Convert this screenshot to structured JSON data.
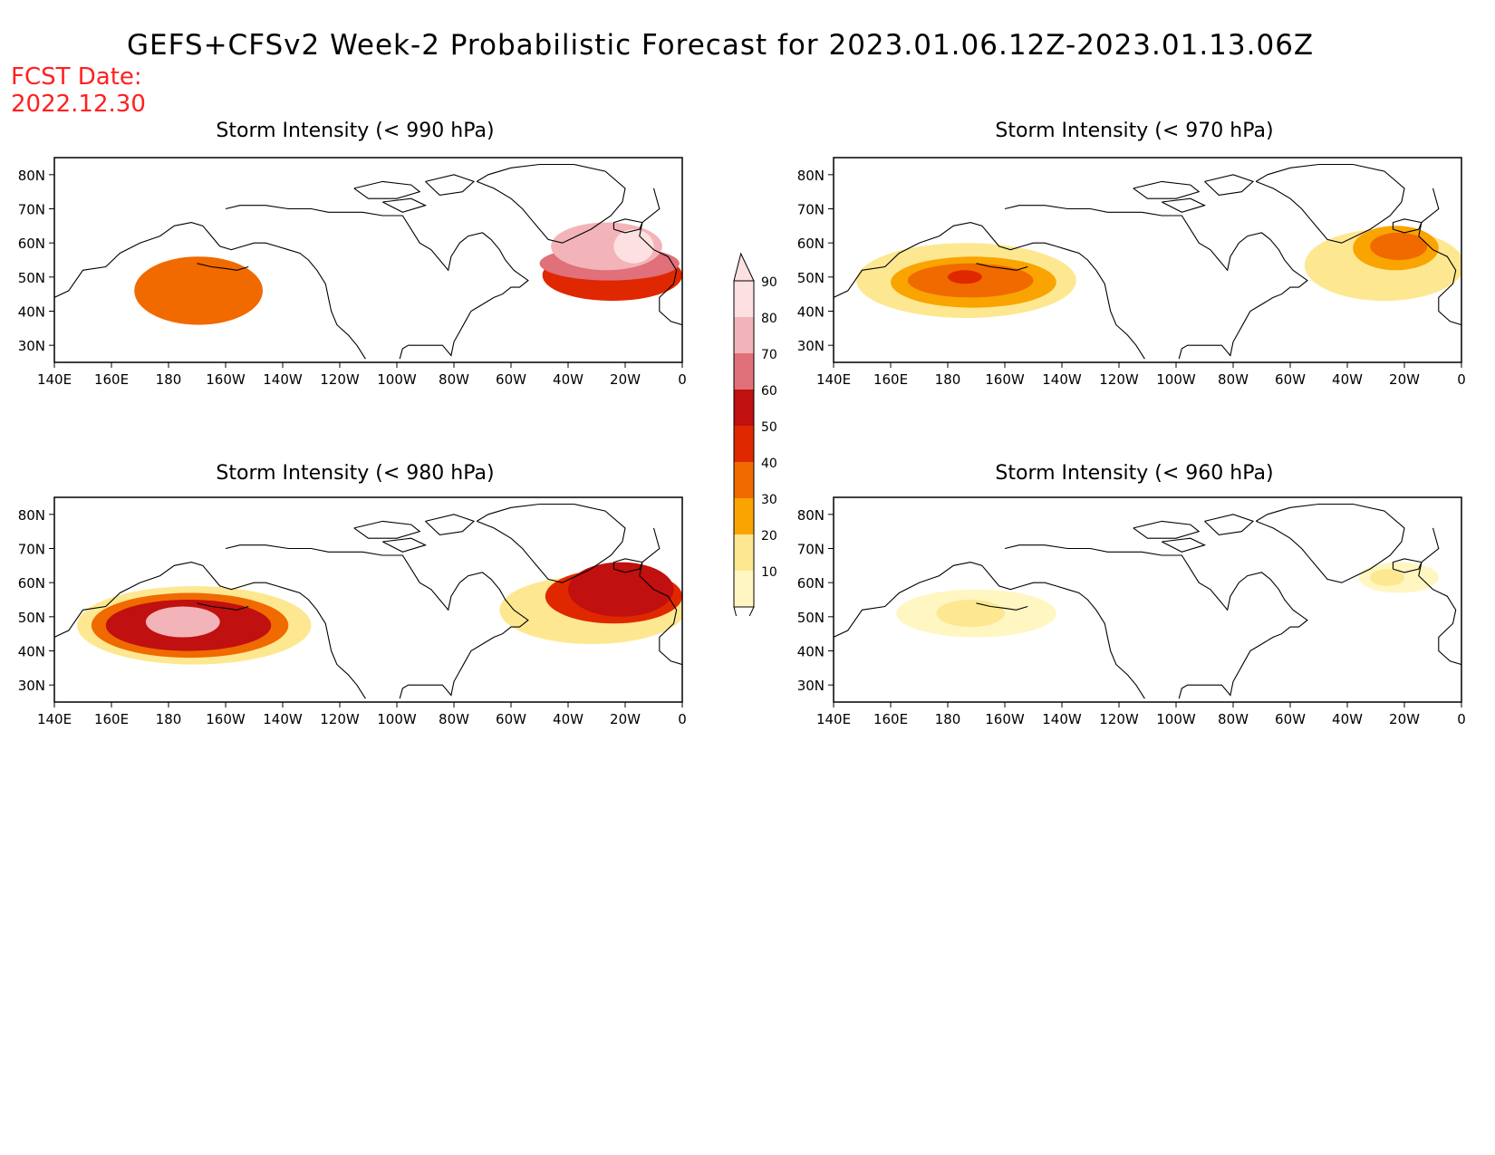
{
  "header": {
    "title": "GEFS+CFSv2 Week-2 Probabilistic Forecast for 2023.01.06.12Z-2023.01.13.06Z",
    "fcst_label": "FCST Date:",
    "fcst_date": "2022.12.30"
  },
  "axes": {
    "lat_ticks": [
      "80N",
      "70N",
      "60N",
      "50N",
      "40N",
      "30N"
    ],
    "lat_values": [
      80,
      70,
      60,
      50,
      40,
      30
    ],
    "lon_ticks": [
      "140E",
      "160E",
      "180",
      "160W",
      "140W",
      "120W",
      "100W",
      "80W",
      "60W",
      "40W",
      "20W",
      "0"
    ],
    "lon_values": [
      140,
      160,
      180,
      200,
      220,
      240,
      260,
      280,
      300,
      320,
      340,
      360
    ],
    "lon_range": [
      140,
      360
    ],
    "lat_range": [
      25,
      85
    ]
  },
  "colorbar": {
    "levels": [
      10,
      20,
      30,
      40,
      50,
      60,
      70,
      80,
      90
    ],
    "labels": [
      "10",
      "20",
      "30",
      "40",
      "50",
      "60",
      "70",
      "80",
      "90"
    ],
    "colors": [
      "#fff6c2",
      "#fde891",
      "#f9a400",
      "#f06a00",
      "#e02800",
      "#c01010",
      "#e0707a",
      "#f2b4b8",
      "#fde0e2"
    ]
  },
  "panels": [
    {
      "id": "p990",
      "title": "Storm Intensity (< 990 hPa)",
      "blobs": [
        {
          "level": 40,
          "lon": [
            168,
            213
          ],
          "lat": [
            36,
            56
          ]
        },
        {
          "level": 50,
          "lon": [
            311,
            360
          ],
          "lat": [
            43,
            58
          ]
        },
        {
          "level": 70,
          "lon": [
            310,
            359
          ],
          "lat": [
            49,
            59
          ]
        },
        {
          "level": 80,
          "lon": [
            314,
            353
          ],
          "lat": [
            52,
            66
          ]
        },
        {
          "level": 90,
          "lon": [
            336,
            350
          ],
          "lat": [
            54,
            64
          ]
        }
      ]
    },
    {
      "id": "p970",
      "title": "Storm Intensity (< 970 hPa)",
      "blobs": [
        {
          "level": 20,
          "lon": [
            148,
            225
          ],
          "lat": [
            38,
            60
          ]
        },
        {
          "level": 30,
          "lon": [
            160,
            218
          ],
          "lat": [
            41,
            56
          ]
        },
        {
          "level": 40,
          "lon": [
            166,
            210
          ],
          "lat": [
            44,
            54
          ]
        },
        {
          "level": 50,
          "lon": [
            180,
            192
          ],
          "lat": [
            48,
            52
          ]
        },
        {
          "level": 20,
          "lon": [
            305,
            361
          ],
          "lat": [
            43,
            64
          ]
        },
        {
          "level": 30,
          "lon": [
            322,
            352
          ],
          "lat": [
            52,
            65
          ]
        },
        {
          "level": 40,
          "lon": [
            328,
            348
          ],
          "lat": [
            55,
            63
          ]
        }
      ]
    },
    {
      "id": "p980",
      "title": "Storm Intensity (< 980 hPa)",
      "blobs": [
        {
          "level": 20,
          "lon": [
            148,
            230
          ],
          "lat": [
            36,
            59
          ]
        },
        {
          "level": 40,
          "lon": [
            153,
            222
          ],
          "lat": [
            38,
            57
          ]
        },
        {
          "level": 60,
          "lon": [
            158,
            216
          ],
          "lat": [
            40,
            55
          ]
        },
        {
          "level": 80,
          "lon": [
            172,
            198
          ],
          "lat": [
            44,
            53
          ]
        },
        {
          "level": 20,
          "lon": [
            296,
            361
          ],
          "lat": [
            42,
            62
          ]
        },
        {
          "level": 50,
          "lon": [
            312,
            360
          ],
          "lat": [
            48,
            64
          ]
        },
        {
          "level": 60,
          "lon": [
            320,
            357
          ],
          "lat": [
            50,
            66
          ]
        }
      ]
    },
    {
      "id": "p960",
      "title": "Storm Intensity (< 960 hPa)",
      "blobs": [
        {
          "level": 10,
          "lon": [
            162,
            218
          ],
          "lat": [
            44,
            58
          ]
        },
        {
          "level": 20,
          "lon": [
            176,
            200
          ],
          "lat": [
            47,
            55
          ]
        },
        {
          "level": 10,
          "lon": [
            324,
            352
          ],
          "lat": [
            57,
            66
          ]
        },
        {
          "level": 20,
          "lon": [
            328,
            340
          ],
          "lat": [
            59,
            64
          ]
        }
      ]
    }
  ]
}
